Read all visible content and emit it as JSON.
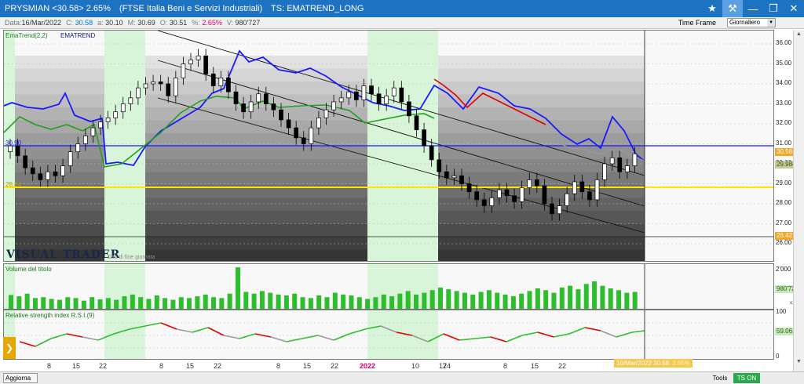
{
  "window": {
    "symbol": "PRYSMIAN <30.58> 2.65%",
    "description": "(FTSE Italia Beni e Servizi Industriali)",
    "strategy": "TS: EMATREND_LONG",
    "controls": [
      "★",
      "⚒",
      "—",
      "❐",
      "✕"
    ]
  },
  "infobar": {
    "data_k": "Data:",
    "data_v": "16/Mar/2022",
    "c_k": "C:",
    "c_v": "30.58",
    "a_k": "a:",
    "a_v": "30.10",
    "m_k": "M:",
    "m_v": "30.69",
    "o_k": "O:",
    "o_v": "30.51",
    "pct_k": "%:",
    "pct_v": "2.65%",
    "v_k": "V:",
    "v_v": "980'727",
    "timeframe_label": "Time Frame",
    "timeframe_value": "Giornaliero"
  },
  "price_panel": {
    "indicator_label": "EmaTrend(2,2)",
    "indicator_name": "EMATREND",
    "logo_text": "VISUAL TRADER",
    "logo_sub": "Dati di fine giornata",
    "hline_blue_label": "30.90",
    "hline_yellow_label": "28.84",
    "y_ticks": [
      "36.00",
      "35.00",
      "34.00",
      "33.00",
      "32.00",
      "31.00",
      "30.00",
      "29.00",
      "28.00",
      "27.00",
      "26.00"
    ],
    "last_price_tag": "30.58",
    "second_tag": "29.984",
    "low_tag": "26.42"
  },
  "volume_panel": {
    "label": "Volume del titolo",
    "y_ticks": [
      "2'000",
      "1'000"
    ],
    "last_tag": "980'727",
    "scale": "x1000"
  },
  "rsi_panel": {
    "label": "Relative strength index R.S.I.(9)",
    "y_ticks": [
      "100",
      "50",
      "0"
    ],
    "last_tag": "59.061"
  },
  "x_axis": {
    "labels": [
      {
        "text": "8",
        "year": false
      },
      {
        "text": "15",
        "year": false
      },
      {
        "text": "22",
        "year": false
      },
      {
        "text": "8",
        "year": false
      },
      {
        "text": "15",
        "year": false
      },
      {
        "text": "22",
        "year": false
      },
      {
        "text": "8",
        "year": false
      },
      {
        "text": "15",
        "year": false
      },
      {
        "text": "22",
        "year": false
      },
      {
        "text": "2022",
        "year": true
      },
      {
        "text": "10",
        "year": false
      },
      {
        "text": "17",
        "year": false
      },
      {
        "text": "24",
        "year": false
      },
      {
        "text": "8",
        "year": false
      },
      {
        "text": "15",
        "year": false
      },
      {
        "text": "22",
        "year": false
      }
    ]
  },
  "footer": {
    "update_label": "Aggiorna",
    "date_readout": "16/Mar/2022 30.58",
    "date_pct": "2.65%",
    "tools_label": "Tools",
    "tson_label": "TS ON"
  },
  "colors": {
    "titlebar": "#1e72c2",
    "ema_blue": "#1a1aff",
    "ema_red": "#e00000",
    "ema_green": "#22a022",
    "ema_gray": "#999999",
    "volume": "#2dbd2d",
    "yellow_line": "#ffe600",
    "green_zone": "#d9f5d9"
  }
}
